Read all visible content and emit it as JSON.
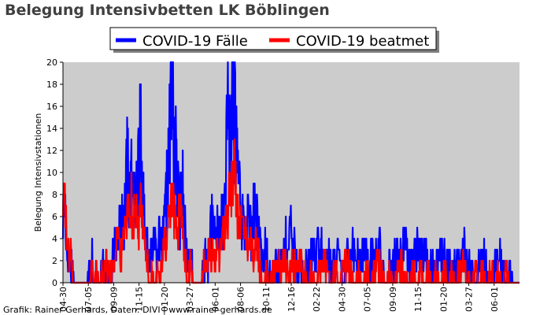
{
  "chart_data": {
    "type": "line",
    "title": "Belegung Intensivbetten LK Böblingen",
    "ylabel": "Belegung Intensivstationen",
    "xlabel": "",
    "ylim": [
      0,
      20
    ],
    "yticks": [
      0,
      2,
      4,
      6,
      8,
      10,
      12,
      14,
      16,
      18,
      20
    ],
    "xticks": [
      "04-30",
      "07-05",
      "09-09",
      "11-15",
      "01-20",
      "03-27",
      "06-01",
      "08-06",
      "10-11",
      "12-16",
      "02-22",
      "04-30",
      "07-05",
      "09-09",
      "11-15",
      "01-20",
      "03-27",
      "06-01"
    ],
    "grid": false,
    "plot_background": "#cccccc",
    "legend_position": "top",
    "credit": "Grafik: Rainer Gerhards, Daten: DIVI | www.rainer-gerhards.de",
    "x_count": 1175,
    "series": [
      {
        "name": "COVID-19 Fälle",
        "color": "#0000ff",
        "keyframes": [
          [
            0,
            6
          ],
          [
            5,
            8
          ],
          [
            10,
            3
          ],
          [
            20,
            2
          ],
          [
            30,
            0
          ],
          [
            55,
            0
          ],
          [
            70,
            1
          ],
          [
            75,
            3
          ],
          [
            78,
            0
          ],
          [
            85,
            1
          ],
          [
            95,
            0
          ],
          [
            105,
            2
          ],
          [
            112,
            1
          ],
          [
            120,
            0
          ],
          [
            125,
            1
          ],
          [
            135,
            3
          ],
          [
            145,
            6
          ],
          [
            155,
            5
          ],
          [
            160,
            7
          ],
          [
            165,
            11
          ],
          [
            170,
            8
          ],
          [
            175,
            9
          ],
          [
            180,
            8
          ],
          [
            185,
            12
          ],
          [
            190,
            7
          ],
          [
            195,
            14
          ],
          [
            200,
            12
          ],
          [
            205,
            8
          ],
          [
            210,
            5
          ],
          [
            215,
            4
          ],
          [
            220,
            3
          ],
          [
            225,
            2
          ],
          [
            230,
            3
          ],
          [
            235,
            5
          ],
          [
            240,
            3
          ],
          [
            245,
            4
          ],
          [
            255,
            3
          ],
          [
            260,
            5
          ],
          [
            265,
            7
          ],
          [
            270,
            9
          ],
          [
            275,
            14
          ],
          [
            280,
            18
          ],
          [
            285,
            14
          ],
          [
            290,
            11
          ],
          [
            295,
            8
          ],
          [
            300,
            6
          ],
          [
            305,
            8
          ],
          [
            308,
            9
          ],
          [
            312,
            6
          ],
          [
            318,
            3
          ],
          [
            325,
            1
          ],
          [
            330,
            2
          ],
          [
            335,
            0
          ],
          [
            355,
            0
          ],
          [
            360,
            1
          ],
          [
            365,
            2
          ],
          [
            370,
            1
          ],
          [
            375,
            3
          ],
          [
            380,
            6
          ],
          [
            385,
            5
          ],
          [
            390,
            4
          ],
          [
            395,
            5
          ],
          [
            400,
            4
          ],
          [
            410,
            6
          ],
          [
            415,
            7
          ],
          [
            420,
            11
          ],
          [
            425,
            14
          ],
          [
            430,
            13
          ],
          [
            435,
            18
          ],
          [
            440,
            15
          ],
          [
            445,
            12
          ],
          [
            450,
            11
          ],
          [
            455,
            9
          ],
          [
            460,
            6
          ],
          [
            465,
            5
          ],
          [
            470,
            4
          ],
          [
            475,
            6
          ],
          [
            480,
            5
          ],
          [
            485,
            4
          ],
          [
            490,
            7
          ],
          [
            495,
            6
          ],
          [
            500,
            5
          ],
          [
            505,
            4
          ],
          [
            510,
            3
          ],
          [
            515,
            2
          ],
          [
            520,
            3
          ],
          [
            525,
            2
          ],
          [
            530,
            1
          ],
          [
            540,
            0
          ],
          [
            550,
            2
          ],
          [
            560,
            1
          ],
          [
            570,
            3
          ],
          [
            575,
            4
          ],
          [
            580,
            2
          ],
          [
            585,
            6
          ],
          [
            590,
            3
          ],
          [
            595,
            5
          ],
          [
            600,
            2
          ],
          [
            605,
            1
          ],
          [
            610,
            2
          ],
          [
            615,
            1
          ],
          [
            620,
            0
          ],
          [
            625,
            2
          ],
          [
            630,
            1
          ],
          [
            640,
            2
          ],
          [
            645,
            3
          ],
          [
            650,
            1
          ],
          [
            655,
            4
          ],
          [
            660,
            2
          ],
          [
            665,
            3
          ],
          [
            670,
            2
          ],
          [
            675,
            1
          ],
          [
            680,
            3
          ],
          [
            685,
            2
          ],
          [
            690,
            1
          ],
          [
            700,
            2
          ],
          [
            705,
            3
          ],
          [
            710,
            2
          ],
          [
            715,
            1
          ],
          [
            720,
            0
          ],
          [
            725,
            1
          ],
          [
            730,
            2
          ],
          [
            735,
            3
          ],
          [
            740,
            2
          ],
          [
            745,
            4
          ],
          [
            750,
            2
          ],
          [
            755,
            3
          ],
          [
            760,
            2
          ],
          [
            765,
            1
          ],
          [
            770,
            3
          ],
          [
            775,
            2
          ],
          [
            780,
            4
          ],
          [
            785,
            2
          ],
          [
            790,
            1
          ],
          [
            795,
            3
          ],
          [
            800,
            2
          ],
          [
            810,
            3
          ],
          [
            815,
            4
          ],
          [
            820,
            1
          ],
          [
            830,
            0
          ],
          [
            840,
            1
          ],
          [
            850,
            2
          ],
          [
            860,
            3
          ],
          [
            870,
            2
          ],
          [
            880,
            4
          ],
          [
            890,
            2
          ],
          [
            900,
            1
          ],
          [
            910,
            3
          ],
          [
            920,
            2
          ],
          [
            930,
            3
          ],
          [
            940,
            2
          ],
          [
            950,
            1
          ],
          [
            960,
            2
          ],
          [
            970,
            3
          ],
          [
            980,
            2
          ],
          [
            990,
            1
          ],
          [
            1000,
            2
          ],
          [
            1010,
            1
          ],
          [
            1020,
            2
          ],
          [
            1030,
            3
          ],
          [
            1040,
            2
          ],
          [
            1050,
            1
          ],
          [
            1060,
            0
          ],
          [
            1070,
            1
          ],
          [
            1080,
            2
          ],
          [
            1090,
            1
          ],
          [
            1100,
            0
          ],
          [
            1110,
            1
          ],
          [
            1120,
            2
          ],
          [
            1130,
            1
          ],
          [
            1140,
            0
          ],
          [
            1150,
            1
          ],
          [
            1160,
            0
          ],
          [
            1174,
            0
          ]
        ]
      },
      {
        "name": "COVID-19 beatmet",
        "color": "#ff0000",
        "keyframes": [
          [
            0,
            7
          ],
          [
            5,
            9
          ],
          [
            10,
            3
          ],
          [
            15,
            2
          ],
          [
            20,
            3
          ],
          [
            25,
            0
          ],
          [
            70,
            0
          ],
          [
            75,
            2
          ],
          [
            78,
            0
          ],
          [
            85,
            1
          ],
          [
            95,
            0
          ],
          [
            100,
            1
          ],
          [
            110,
            2
          ],
          [
            115,
            1
          ],
          [
            125,
            1
          ],
          [
            135,
            3
          ],
          [
            140,
            5
          ],
          [
            145,
            3
          ],
          [
            150,
            2
          ],
          [
            155,
            4
          ],
          [
            160,
            6
          ],
          [
            165,
            7
          ],
          [
            170,
            6
          ],
          [
            175,
            8
          ],
          [
            180,
            5
          ],
          [
            185,
            7
          ],
          [
            190,
            6
          ],
          [
            195,
            5
          ],
          [
            200,
            7
          ],
          [
            205,
            6
          ],
          [
            210,
            4
          ],
          [
            215,
            2
          ],
          [
            220,
            1
          ],
          [
            225,
            0
          ],
          [
            230,
            1
          ],
          [
            235,
            0
          ],
          [
            245,
            1
          ],
          [
            250,
            0
          ],
          [
            255,
            2
          ],
          [
            260,
            4
          ],
          [
            265,
            3
          ],
          [
            270,
            5
          ],
          [
            275,
            7
          ],
          [
            280,
            9
          ],
          [
            285,
            6
          ],
          [
            290,
            5
          ],
          [
            295,
            4
          ],
          [
            300,
            7
          ],
          [
            305,
            6
          ],
          [
            310,
            4
          ],
          [
            315,
            2
          ],
          [
            320,
            0
          ],
          [
            325,
            1
          ],
          [
            330,
            2
          ],
          [
            335,
            0
          ],
          [
            355,
            0
          ],
          [
            360,
            1
          ],
          [
            365,
            2
          ],
          [
            370,
            1
          ],
          [
            375,
            3
          ],
          [
            380,
            2
          ],
          [
            385,
            3
          ],
          [
            390,
            2
          ],
          [
            395,
            3
          ],
          [
            400,
            2
          ],
          [
            405,
            3
          ],
          [
            410,
            4
          ],
          [
            415,
            5
          ],
          [
            420,
            6
          ],
          [
            425,
            7
          ],
          [
            430,
            8
          ],
          [
            435,
            9
          ],
          [
            440,
            11
          ],
          [
            445,
            8
          ],
          [
            450,
            6
          ],
          [
            455,
            5
          ],
          [
            460,
            6
          ],
          [
            465,
            4
          ],
          [
            470,
            5
          ],
          [
            475,
            3
          ],
          [
            480,
            4
          ],
          [
            485,
            3
          ],
          [
            490,
            2
          ],
          [
            495,
            4
          ],
          [
            500,
            3
          ],
          [
            505,
            2
          ],
          [
            510,
            1
          ],
          [
            515,
            0
          ],
          [
            525,
            1
          ],
          [
            530,
            0
          ],
          [
            540,
            1
          ],
          [
            550,
            2
          ],
          [
            560,
            1
          ],
          [
            570,
            2
          ],
          [
            580,
            1
          ],
          [
            590,
            2
          ],
          [
            600,
            1
          ],
          [
            610,
            2
          ],
          [
            620,
            1
          ],
          [
            630,
            0
          ],
          [
            640,
            1
          ],
          [
            650,
            0
          ],
          [
            660,
            1
          ],
          [
            670,
            2
          ],
          [
            680,
            1
          ],
          [
            690,
            0
          ],
          [
            700,
            1
          ],
          [
            710,
            0
          ],
          [
            720,
            1
          ],
          [
            730,
            2
          ],
          [
            740,
            1
          ],
          [
            750,
            0
          ],
          [
            760,
            1
          ],
          [
            770,
            0
          ],
          [
            780,
            1
          ],
          [
            790,
            0
          ],
          [
            800,
            1
          ],
          [
            810,
            2
          ],
          [
            820,
            1
          ],
          [
            830,
            0
          ],
          [
            840,
            1
          ],
          [
            850,
            0
          ],
          [
            860,
            1
          ],
          [
            870,
            2
          ],
          [
            880,
            1
          ],
          [
            890,
            0
          ],
          [
            900,
            1
          ],
          [
            910,
            0
          ],
          [
            920,
            1
          ],
          [
            930,
            0
          ],
          [
            940,
            1
          ],
          [
            950,
            0
          ],
          [
            960,
            1
          ],
          [
            970,
            0
          ],
          [
            980,
            1
          ],
          [
            990,
            0
          ],
          [
            1000,
            1
          ],
          [
            1010,
            0
          ],
          [
            1020,
            1
          ],
          [
            1030,
            2
          ],
          [
            1040,
            1
          ],
          [
            1050,
            0
          ],
          [
            1060,
            1
          ],
          [
            1070,
            0
          ],
          [
            1080,
            1
          ],
          [
            1090,
            0
          ],
          [
            1100,
            1
          ],
          [
            1110,
            0
          ],
          [
            1120,
            1
          ],
          [
            1130,
            0
          ],
          [
            1140,
            1
          ],
          [
            1150,
            0
          ],
          [
            1174,
            0
          ]
        ]
      }
    ]
  }
}
